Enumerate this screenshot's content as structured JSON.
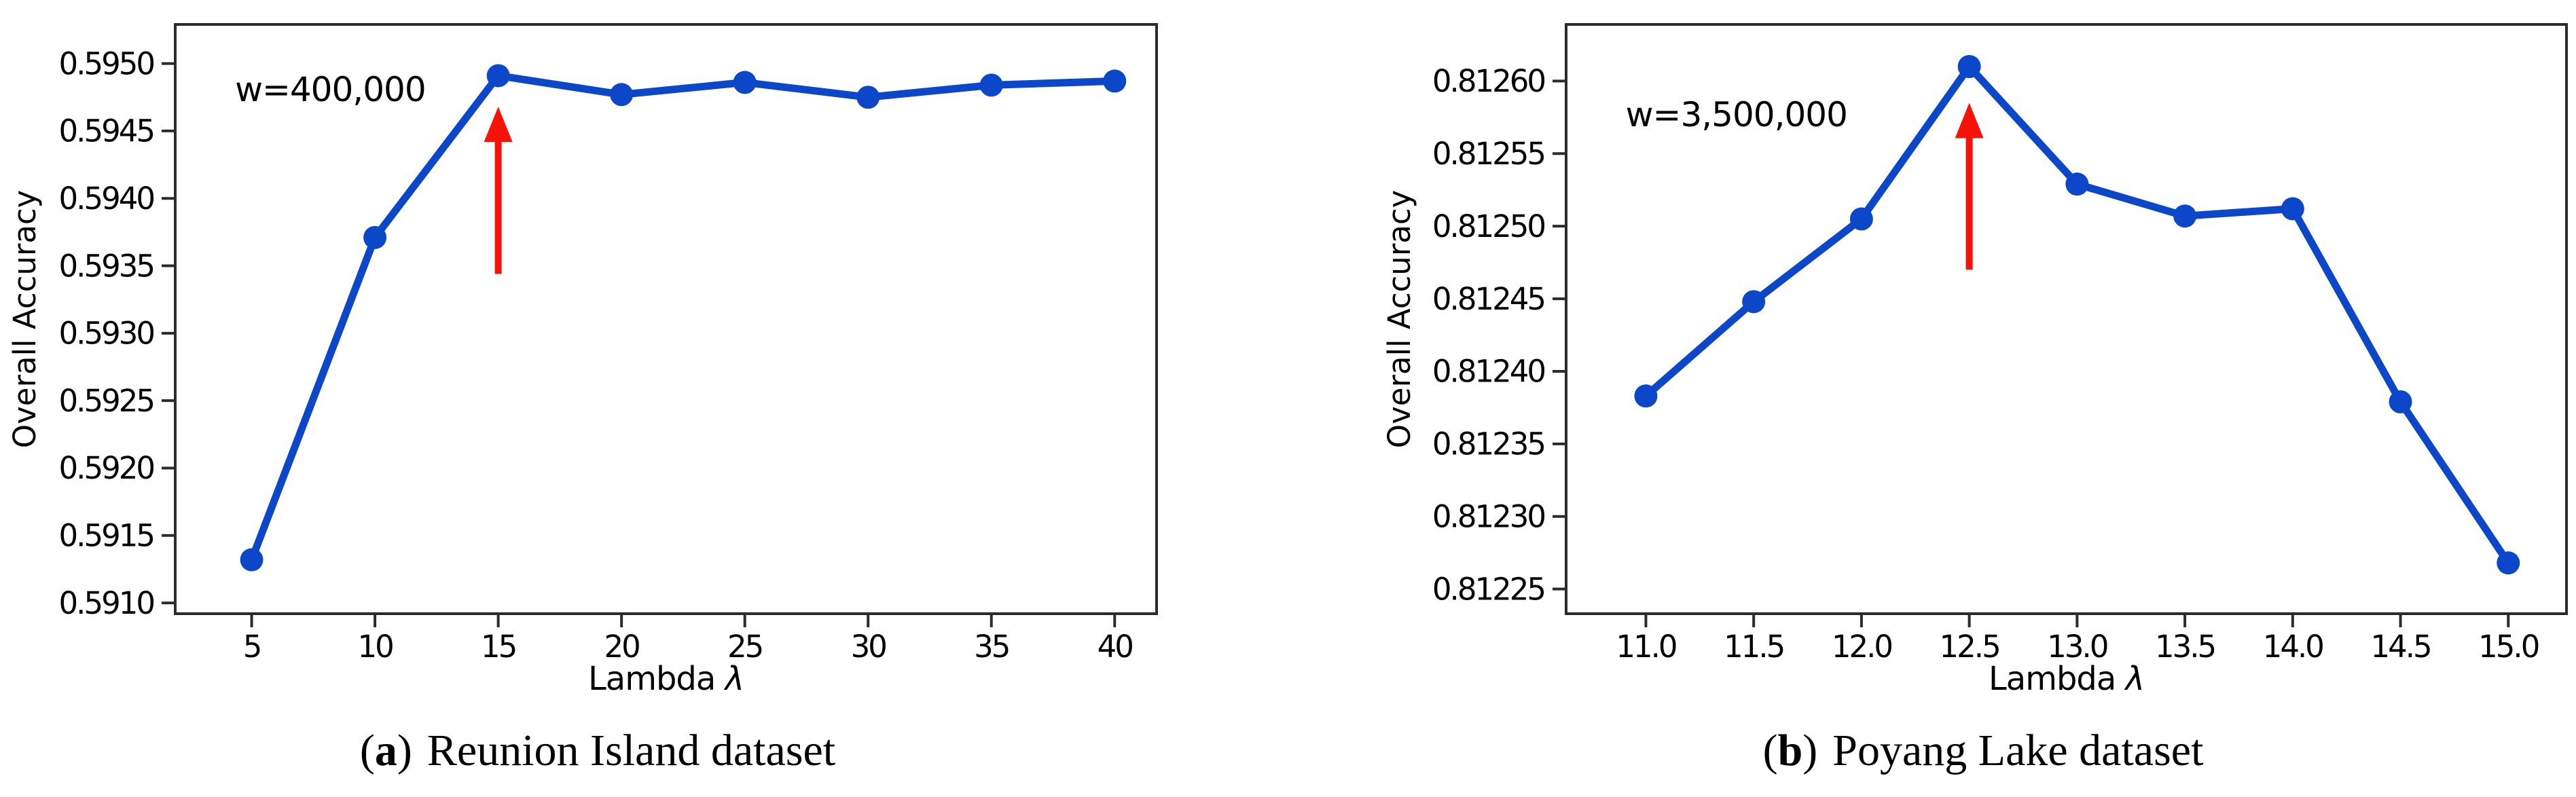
{
  "figure": {
    "background": "#ffffff",
    "spine_color": "#2b2b2b",
    "text_color": "#000000"
  },
  "chart_data": [
    {
      "panel": "a",
      "type": "line",
      "caption": {
        "open": "(",
        "bold": "a",
        "close": ")",
        "text": "Reunion Island dataset"
      },
      "xlabel": "Lambda",
      "xlabel_symbol": "λ",
      "ylabel": "Overall Accuracy",
      "x": [
        5,
        10,
        15,
        20,
        25,
        30,
        35,
        40
      ],
      "y": [
        0.59132,
        0.59371,
        0.59491,
        0.59477,
        0.59486,
        0.59475,
        0.59484,
        0.59487
      ],
      "xlim": [
        1.9,
        41.7
      ],
      "ylim": [
        0.59092,
        0.59529
      ],
      "xticks": [
        5,
        10,
        15,
        20,
        25,
        30,
        35,
        40
      ],
      "xtick_labels": [
        "5",
        "10",
        "15",
        "20",
        "25",
        "30",
        "35",
        "40"
      ],
      "yticks": [
        0.591,
        0.5915,
        0.592,
        0.5925,
        0.593,
        0.5935,
        0.594,
        0.5945,
        0.595
      ],
      "ytick_labels": [
        "0.5910",
        "0.5915",
        "0.5920",
        "0.5925",
        "0.5930",
        "0.5935",
        "0.5940",
        "0.5945",
        "0.5950"
      ],
      "grid": false,
      "legend": "none",
      "line_color": "#0b47c8",
      "marker": "circle",
      "marker_color": "#0b47c8",
      "annotation": {
        "text": "w=400,000",
        "x": 8.19,
        "y": 0.59481
      },
      "arrow": {
        "color": "#f51208",
        "x": 15,
        "tail_y": 0.59344,
        "tip_y": 0.59468
      }
    },
    {
      "panel": "b",
      "type": "line",
      "caption": {
        "open": "(",
        "bold": "b",
        "close": ")",
        "text": "Poyang Lake dataset"
      },
      "xlabel": "Lambda",
      "xlabel_symbol": "λ",
      "ylabel": "Overall Accuracy",
      "x": [
        11.0,
        11.5,
        12.0,
        12.5,
        13.0,
        13.5,
        14.0,
        14.5,
        15.0
      ],
      "y": [
        0.812383,
        0.812448,
        0.812505,
        0.81261,
        0.812529,
        0.812507,
        0.812512,
        0.812379,
        0.812268
      ],
      "xlim": [
        10.63,
        15.27
      ],
      "ylim": [
        0.812233,
        0.812639
      ],
      "xticks": [
        11.0,
        11.5,
        12.0,
        12.5,
        13.0,
        13.5,
        14.0,
        14.5,
        15.0
      ],
      "xtick_labels": [
        "11.0",
        "11.5",
        "12.0",
        "12.5",
        "13.0",
        "13.5",
        "14.0",
        "14.5",
        "15.0"
      ],
      "yticks": [
        0.81225,
        0.8123,
        0.81235,
        0.8124,
        0.81245,
        0.8125,
        0.81255,
        0.8126
      ],
      "ytick_labels": [
        "0.81225",
        "0.81230",
        "0.81235",
        "0.81240",
        "0.81245",
        "0.81250",
        "0.81255",
        "0.81260"
      ],
      "grid": false,
      "legend": "none",
      "line_color": "#0b47c8",
      "marker": "circle",
      "marker_color": "#0b47c8",
      "annotation": {
        "text": "w=3,500,000",
        "x": 11.42,
        "y": 0.812577
      },
      "arrow": {
        "color": "#f51208",
        "x": 12.5,
        "tail_y": 0.81247,
        "tip_y": 0.812585
      }
    }
  ]
}
